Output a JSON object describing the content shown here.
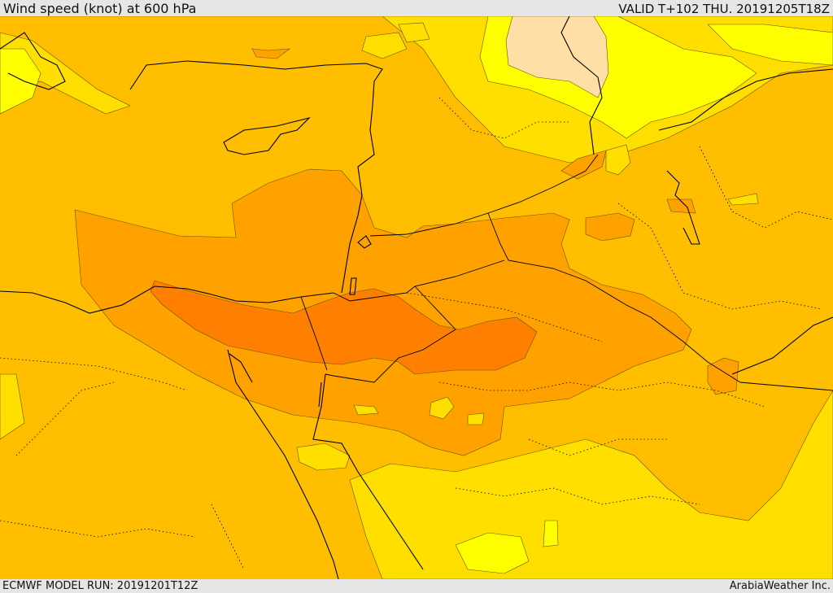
{
  "header": {
    "title": "Wind speed (knot) at 600 hPa",
    "valid": "VALID T+102 THU. 20191205T18Z"
  },
  "footer": {
    "model_run": "ECMWF MODEL RUN: 20191201T12Z",
    "credit": "ArabiaWeather Inc."
  },
  "colors": {
    "band_10_20": "#ffdf00",
    "band_20_30": "#ffbf00",
    "band_30_40": "#ffa200",
    "band_40_50": "#ff8000",
    "band_0_10_light": "#ffff00",
    "band_pale": "#ffdfa6",
    "coast": "#000000",
    "border": "#000000"
  }
}
